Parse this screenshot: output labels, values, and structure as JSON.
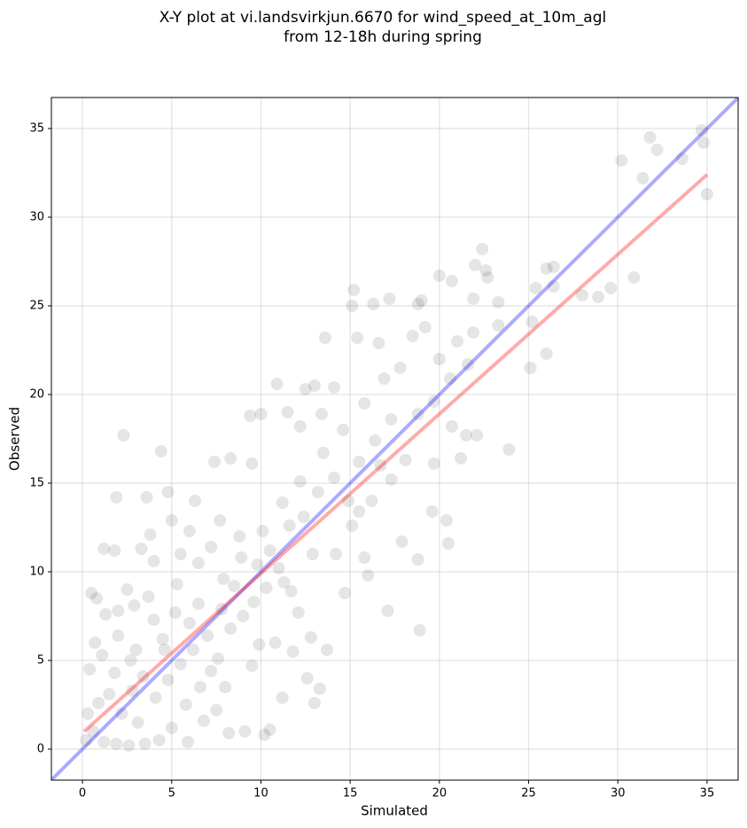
{
  "chart_data": {
    "type": "scatter",
    "title": [
      "X-Y plot at vi.landsvirkjun.6670 for wind_speed_at_10m_agl",
      "from 12-18h during spring"
    ],
    "xlabel": "Simulated",
    "ylabel": "Observed",
    "xlim": [
      -1.74,
      36.74
    ],
    "ylim": [
      -1.75,
      36.75
    ],
    "xticks": [
      0,
      5,
      10,
      15,
      20,
      25,
      30,
      35
    ],
    "yticks": [
      0,
      5,
      10,
      15,
      20,
      25,
      30,
      35
    ],
    "grid": true,
    "color": "#000000",
    "alpha": 0.1,
    "x": [
      34.7,
      31.8,
      32.2,
      34.8,
      33.6,
      30.2,
      31.4,
      35.0,
      30.9,
      29.6,
      28.9,
      28.0,
      26.4,
      26.0,
      26.4,
      25.4,
      25.2,
      26.0,
      25.1,
      22.4,
      22.0,
      22.6,
      22.7,
      23.3,
      21.9,
      20.0,
      20.7,
      23.3,
      21.0,
      21.9,
      19.0,
      18.8,
      15.2,
      15.1,
      16.3,
      17.2,
      13.6,
      15.4,
      16.6,
      18.5,
      19.2,
      20.0,
      20.6,
      21.6,
      22.1,
      21.5,
      21.2,
      23.9,
      20.7,
      19.7,
      20.4,
      20.5,
      19.6,
      18.8,
      18.9,
      17.1,
      17.9,
      16.0,
      15.8,
      14.7,
      2.3,
      4.4,
      1.9,
      3.6,
      4.8,
      6.3,
      7.4,
      8.3,
      9.4,
      10.0,
      10.9,
      12.5,
      13.0,
      14.1,
      12.2,
      13.4,
      11.5,
      9.5,
      8.8,
      7.7,
      6.0,
      5.5,
      4.0,
      3.3,
      1.8,
      1.2,
      2.5,
      3.7,
      0.5,
      0.8,
      1.3,
      2.0,
      3.0,
      4.5,
      5.2,
      6.5,
      7.8,
      8.5,
      9.8,
      10.5,
      11.6,
      12.4,
      13.2,
      14.1,
      15.5,
      16.4,
      17.3,
      11.3,
      12.1,
      12.8,
      13.7,
      12.6,
      13.3,
      13.0,
      11.2,
      10.5,
      10.2,
      9.1,
      8.2,
      7.5,
      6.6,
      5.8,
      5.0,
      4.3,
      3.5,
      2.6,
      1.9,
      1.2,
      0.6,
      0.3,
      0.2,
      0.9,
      1.5,
      2.2,
      2.8,
      3.4,
      4.1,
      4.8,
      5.5,
      6.2,
      7.0,
      7.6,
      8.3,
      9.0,
      9.6,
      10.3,
      11.0,
      8.0,
      9.5,
      10.8,
      11.8,
      6.5,
      7.2,
      5.3,
      4.0,
      2.7,
      1.8,
      3.1,
      4.6,
      6.0,
      7.9,
      8.9,
      10.1,
      11.2,
      12.2,
      13.5,
      14.6,
      15.8,
      16.9,
      17.8,
      14.2,
      15.1,
      16.2,
      17.3,
      18.1,
      18.8,
      19.7,
      14.9,
      16.7,
      15.5,
      12.9,
      11.7,
      9.9,
      6.8,
      5.9,
      7.2,
      0.4,
      0.7,
      1.1,
      2.0,
      2.9,
      3.8,
      5.0
    ],
    "values": [
      34.9,
      34.5,
      33.8,
      34.2,
      33.3,
      33.2,
      32.2,
      31.3,
      26.6,
      26.0,
      25.5,
      25.6,
      27.2,
      27.1,
      26.1,
      26.0,
      24.1,
      22.3,
      21.5,
      28.2,
      27.3,
      27.0,
      26.6,
      25.2,
      25.4,
      26.7,
      26.4,
      23.9,
      23.0,
      23.5,
      25.3,
      25.1,
      25.9,
      25.0,
      25.1,
      25.4,
      23.2,
      23.2,
      22.9,
      23.3,
      23.8,
      22.0,
      20.9,
      21.7,
      17.7,
      17.7,
      16.4,
      16.9,
      18.2,
      16.1,
      12.9,
      11.6,
      13.4,
      10.7,
      6.7,
      7.8,
      11.7,
      9.8,
      10.8,
      8.8,
      17.7,
      16.8,
      14.2,
      14.2,
      14.5,
      14.0,
      16.2,
      16.4,
      18.8,
      18.9,
      20.6,
      20.3,
      20.5,
      20.4,
      18.2,
      18.9,
      19.0,
      16.1,
      12.0,
      12.9,
      12.3,
      11.0,
      10.6,
      11.3,
      11.2,
      11.3,
      9.0,
      8.6,
      8.8,
      8.5,
      7.6,
      6.4,
      5.6,
      6.2,
      7.7,
      8.2,
      7.9,
      9.2,
      10.4,
      11.2,
      12.6,
      13.1,
      14.5,
      15.3,
      16.2,
      17.4,
      18.6,
      9.4,
      7.7,
      6.3,
      5.6,
      4.0,
      3.4,
      2.6,
      2.9,
      1.1,
      0.8,
      1.0,
      0.9,
      2.2,
      3.5,
      2.5,
      1.2,
      0.5,
      0.3,
      0.2,
      0.3,
      0.4,
      1.0,
      2.0,
      0.5,
      2.6,
      3.1,
      2.0,
      3.3,
      4.1,
      2.9,
      3.9,
      4.8,
      5.6,
      6.4,
      5.1,
      6.8,
      7.5,
      8.3,
      9.1,
      10.2,
      3.5,
      4.7,
      6.0,
      5.5,
      10.5,
      11.4,
      9.3,
      7.3,
      5.0,
      4.3,
      1.5,
      5.6,
      7.1,
      9.6,
      10.8,
      12.3,
      13.9,
      15.1,
      16.7,
      18.0,
      19.5,
      20.9,
      21.5,
      11.0,
      12.6,
      14.0,
      15.2,
      16.3,
      18.9,
      19.6,
      14.0,
      16.0,
      13.4,
      11.0,
      8.9,
      5.9,
      1.6,
      0.4,
      4.4,
      4.5,
      6.0,
      5.3,
      7.8,
      8.1,
      12.1,
      12.9
    ],
    "lines": [
      {
        "color": "#0000ff",
        "x": [
          -1.74,
          36.74
        ],
        "y": [
          -1.74,
          36.74
        ]
      },
      {
        "color": "#ff0000",
        "x": [
          0.1,
          35.0
        ],
        "y": [
          1.0,
          32.4
        ]
      }
    ]
  }
}
